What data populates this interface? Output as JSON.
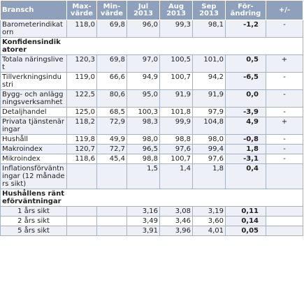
{
  "headers": {
    "col1": "Bransch",
    "col2": [
      "Max-",
      "värde"
    ],
    "col3": [
      "Min-",
      "värde"
    ],
    "col4": [
      "Jul",
      "2013"
    ],
    "col5": [
      "Aug",
      "2013"
    ],
    "col6": [
      "Sep",
      "2013"
    ],
    "col7": [
      "För-",
      "ändring"
    ],
    "col8": "+/-"
  },
  "rows": [
    {
      "label": "Barometerindikatorn",
      "max": "118,0",
      "min": "69,8",
      "jul": "96,0",
      "aug": "99,3",
      "sep": "98,1",
      "chg": "-1,2",
      "sign": "-"
    },
    {
      "section": "Konfidensindikatorer"
    },
    {
      "label": "Totala näringslivet",
      "max": "120,3",
      "min": "69,8",
      "jul": "97,0",
      "aug": "100,5",
      "sep": "101,0",
      "chg": "0,5",
      "sign": "+"
    },
    {
      "label": "Tillverkningsindustri",
      "max": "119,0",
      "min": "66,6",
      "jul": "94,9",
      "aug": "100,7",
      "sep": "94,2",
      "chg": "-6,5",
      "sign": "-"
    },
    {
      "label": "Bygg- och anläggningsverksamhet",
      "max": "122,5",
      "min": "80,6",
      "jul": "95,0",
      "aug": "91,9",
      "sep": "91,9",
      "chg": "0,0",
      "sign": "-"
    },
    {
      "label": "Detaljhandel",
      "max": "125,0",
      "min": "68,5",
      "jul": "100,3",
      "aug": "101,8",
      "sep": "97,9",
      "chg": "-3,9",
      "sign": "-"
    },
    {
      "label": "Privata tjänstenäringar",
      "max": "118,2",
      "min": "72,9",
      "jul": "98,3",
      "aug": "99,9",
      "sep": "104,8",
      "chg": "4,9",
      "sign": "+"
    },
    {
      "label": "Hushåll",
      "max": "119,8",
      "min": "49,9",
      "jul": "98,0",
      "aug": "98,8",
      "sep": "98,0",
      "chg": "-0,8",
      "sign": "-"
    },
    {
      "label": "Makroindex",
      "max": "120,7",
      "min": "72,7",
      "jul": "96,5",
      "aug": "97,6",
      "sep": "99,4",
      "chg": "1,8",
      "sign": "-"
    },
    {
      "label": "Mikroindex",
      "max": "118,6",
      "min": "45,4",
      "jul": "98,8",
      "aug": "100,7",
      "sep": "97,6",
      "chg": "-3,1",
      "sign": "-"
    },
    {
      "label": "Inflationsförväntningar (12 månaders sikt)",
      "max": "",
      "min": "",
      "jul": "1,5",
      "aug": "1,4",
      "sep": "1,8",
      "chg": "0,4",
      "sign": ""
    },
    {
      "section": "Hushållens ränteförväntningar"
    },
    {
      "label": "1 års sikt",
      "max": "",
      "min": "",
      "jul": "3,16",
      "aug": "3,08",
      "sep": "3,19",
      "chg": "0,11",
      "sign": ""
    },
    {
      "label": "2 års sikt",
      "max": "",
      "min": "",
      "jul": "3,49",
      "aug": "3,46",
      "sep": "3,60",
      "chg": "0,14",
      "sign": ""
    },
    {
      "label": "5 års sikt",
      "max": "",
      "min": "",
      "jul": "3,91",
      "aug": "3,96",
      "sep": "4,01",
      "chg": "0,05",
      "sign": ""
    }
  ]
}
